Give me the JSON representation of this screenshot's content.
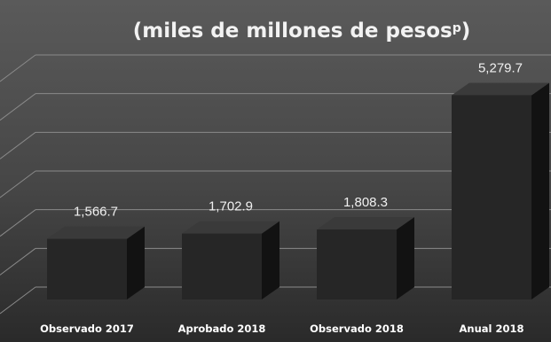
{
  "chart_data": {
    "type": "bar",
    "title": "(miles de millones de pesos",
    "title_superscript": "p",
    "title_suffix": ")",
    "categories": [
      "Observado 2017",
      "Aprobado 2018",
      "Observado 2018",
      "Anual 2018"
    ],
    "values": [
      1566.7,
      1702.9,
      1808.3,
      5279.7
    ],
    "value_labels": [
      "1,566.7",
      "1,702.9",
      "1,808.3",
      "5,279.7"
    ],
    "xlabel": "",
    "ylabel": "",
    "ylim": [
      0,
      6000
    ],
    "grid": true,
    "legend": "none",
    "colors": {
      "background_top": "#5a5a5a",
      "background_bottom": "#2a2a2a",
      "bar_front": "#262626",
      "bar_side": "#121212",
      "bar_top": "#3a3a3a",
      "text": "#f2f2f2"
    }
  }
}
